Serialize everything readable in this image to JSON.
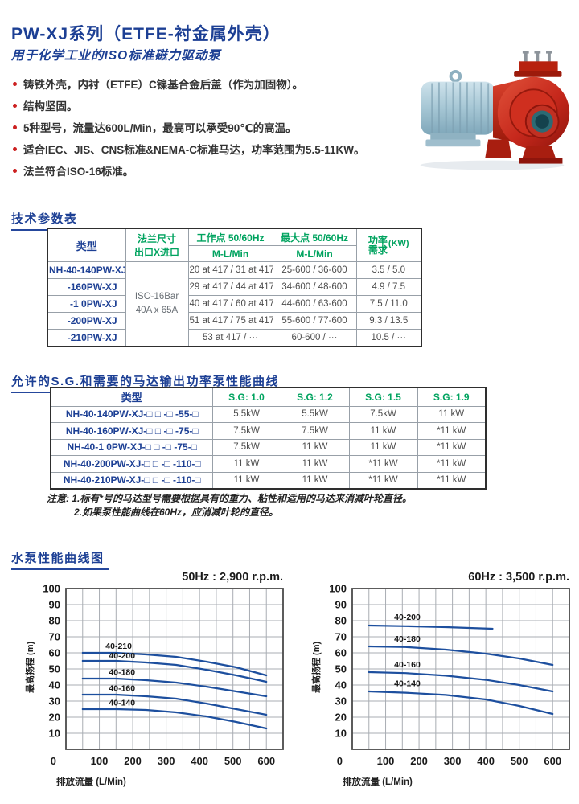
{
  "header": {
    "title": "PW-XJ系列（ETFE-衬金属外壳）",
    "subtitle": "用于化学工业的ISO标准磁力驱动泵",
    "bullets": [
      "铸铁外壳，内衬（ETFE）C镍基合金后盖（作为加固物）。",
      "结构坚固。",
      "5种型号，流量达600L/Min，最高可以承受90℃的高温。",
      "适合IEC、JIS、CNS标准&NEMA-C标准马达，功率范围为5.5-11KW。",
      "法兰符合ISO-16标准。"
    ]
  },
  "sections": {
    "specs_heading": "技术参数表",
    "sg_heading": "允许的S.G.和需要的马达输出功率泵性能曲线",
    "curves_heading": "水泵性能曲线图"
  },
  "specs_table": {
    "headers": {
      "type": "类型",
      "flange_line1": "法兰尺寸",
      "flange_line2": "出口X进口",
      "working": "工作点  50/60Hz",
      "max": "最大点  50/60Hz",
      "ml_min": "M-L/Min",
      "power_line1": "功率",
      "power_line2": "需求",
      "power_unit": "(KW)"
    },
    "flange_value_line1": "ISO-16Bar",
    "flange_value_line2": "40A x 65A",
    "rows": [
      {
        "model": "NH-40-140PW-XJ",
        "working": "20 at 417 / 31 at 417",
        "max": "25-600 / 36-600",
        "power": "3.5 / 5.0"
      },
      {
        "model": "-160PW-XJ",
        "working": "29 at 417 / 44 at 417",
        "max": "34-600 / 48-600",
        "power": "4.9 / 7.5"
      },
      {
        "model": "-1 0PW-XJ",
        "working": "40 at 417 / 60 at 417",
        "max": "44-600 / 63-600",
        "power": "7.5 / 11.0"
      },
      {
        "model": "-200PW-XJ",
        "working": "51 at 417 / 75 at 417",
        "max": "55-600 / 77-600",
        "power": "9.3 / 13.5"
      },
      {
        "model": "-210PW-XJ",
        "working": "53 at 417 / ···",
        "max": "60-600 / ···",
        "power": "10.5 / ···"
      }
    ]
  },
  "sg_table": {
    "headers": [
      "类型",
      "S.G: 1.0",
      "S.G: 1.2",
      "S.G: 1.5",
      "S.G: 1.9"
    ],
    "rows": [
      {
        "model": "NH-40-140PW-XJ-□ □ -□ -55-□",
        "values": [
          "5.5kW",
          "5.5kW",
          "7.5kW",
          "11 kW"
        ]
      },
      {
        "model": "NH-40-160PW-XJ-□ □ -□ -75-□",
        "values": [
          "7.5kW",
          "7.5kW",
          "11 kW",
          "*11 kW"
        ]
      },
      {
        "model": "NH-40-1 0PW-XJ-□ □ -□ -75-□",
        "values": [
          "7.5kW",
          "11 kW",
          "11 kW",
          "*11 kW"
        ]
      },
      {
        "model": "NH-40-200PW-XJ-□ □ -□ -110-□",
        "values": [
          "11 kW",
          "11 kW",
          "*11 kW",
          "*11 kW"
        ]
      },
      {
        "model": "NH-40-210PW-XJ-□ □ -□ -110-□",
        "values": [
          "11 kW",
          "11 kW",
          "*11 kW",
          "*11 kW"
        ]
      }
    ]
  },
  "notes": {
    "label": "注意:",
    "line1": "1.标有*号的马达型号需要根据具有的重力、粘性和适用的马达来消减叶轮直径。",
    "line2": "2.如果泵性能曲线在60Hz，应消减叶轮的直径。"
  },
  "colors": {
    "heading_navy": "#1c3f94",
    "table_green": "#00a35f",
    "bullet_red": "#cc2020",
    "curve_blue": "#1d4f9e"
  },
  "chart_data": [
    {
      "type": "line",
      "title": "50Hz : 2,900 r.p.m.",
      "xlabel": "排放流量  (L/Min)",
      "ylabel": "最高扬程 (m)",
      "xlim": [
        0,
        650
      ],
      "ylim": [
        0,
        100
      ],
      "xticks": [
        100,
        200,
        300,
        400,
        500,
        600
      ],
      "yticks": [
        10,
        20,
        30,
        40,
        50,
        60,
        70,
        80,
        90,
        100
      ],
      "origin_label": "0",
      "grid_step_x": 50,
      "grid": true,
      "legend_position": "inline-labels",
      "line_color": "#1d4f9e",
      "series": [
        {
          "name": "40-210",
          "label_x": 158,
          "label_y": 62.6,
          "points": [
            [
              50,
              60
            ],
            [
              150,
              60
            ],
            [
              240,
              59
            ],
            [
              330,
              57.5
            ],
            [
              420,
              54.5
            ],
            [
              510,
              51
            ],
            [
              600,
              46
            ]
          ]
        },
        {
          "name": "40-200",
          "label_x": 168,
          "label_y": 56.4,
          "points": [
            [
              50,
              55
            ],
            [
              150,
              55
            ],
            [
              240,
              54
            ],
            [
              330,
              52.5
            ],
            [
              420,
              49.5
            ],
            [
              510,
              46
            ],
            [
              600,
              42
            ]
          ]
        },
        {
          "name": "40-180",
          "label_x": 168,
          "label_y": 46.3,
          "points": [
            [
              50,
              44
            ],
            [
              150,
              44
            ],
            [
              240,
              43
            ],
            [
              330,
              41.5
            ],
            [
              420,
              39
            ],
            [
              510,
              36
            ],
            [
              600,
              33
            ]
          ]
        },
        {
          "name": "40-160",
          "label_x": 168,
          "label_y": 36.3,
          "points": [
            [
              50,
              34
            ],
            [
              150,
              34
            ],
            [
              240,
              33
            ],
            [
              330,
              31.5
            ],
            [
              420,
              28.5
            ],
            [
              510,
              25
            ],
            [
              600,
              21.5
            ]
          ]
        },
        {
          "name": "40-140",
          "label_x": 168,
          "label_y": 27.3,
          "points": [
            [
              50,
              25
            ],
            [
              150,
              25
            ],
            [
              240,
              24.5
            ],
            [
              330,
              23
            ],
            [
              420,
              20.5
            ],
            [
              510,
              17
            ],
            [
              600,
              13
            ]
          ]
        }
      ]
    },
    {
      "type": "line",
      "title": "60Hz : 3,500 r.p.m.",
      "xlabel": "排放流量  (L/Min)",
      "ylabel": "最高扬程 (m)",
      "xlim": [
        0,
        650
      ],
      "ylim": [
        0,
        100
      ],
      "xticks": [
        100,
        200,
        300,
        400,
        500,
        600
      ],
      "yticks": [
        10,
        20,
        30,
        40,
        50,
        60,
        70,
        80,
        90,
        100
      ],
      "origin_label": "0",
      "grid_step_x": 50,
      "grid": true,
      "legend_position": "inline-labels",
      "line_color": "#1d4f9e",
      "series": [
        {
          "name": "40-200",
          "label_x": 165,
          "label_y": 80.5,
          "points": [
            [
              50,
              77
            ],
            [
              160,
              76.6
            ],
            [
              280,
              76
            ],
            [
              420,
              75
            ]
          ]
        },
        {
          "name": "40-180",
          "label_x": 165,
          "label_y": 67.0,
          "points": [
            [
              50,
              64
            ],
            [
              160,
              63.6
            ],
            [
              280,
              62
            ],
            [
              400,
              59.5
            ],
            [
              500,
              56.5
            ],
            [
              600,
              52.5
            ]
          ]
        },
        {
          "name": "40-160",
          "label_x": 165,
          "label_y": 51.0,
          "points": [
            [
              50,
              48
            ],
            [
              160,
              47.4
            ],
            [
              280,
              45.8
            ],
            [
              400,
              43.2
            ],
            [
              500,
              40
            ],
            [
              600,
              36
            ]
          ]
        },
        {
          "name": "40-140",
          "label_x": 165,
          "label_y": 39.3,
          "points": [
            [
              50,
              36
            ],
            [
              160,
              35.2
            ],
            [
              280,
              33.8
            ],
            [
              400,
              31
            ],
            [
              500,
              27
            ],
            [
              600,
              22
            ]
          ]
        }
      ]
    }
  ]
}
